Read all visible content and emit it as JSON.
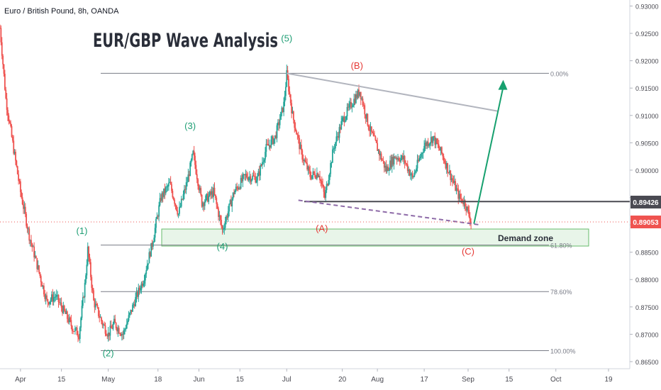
{
  "header": {
    "symbol": "Euro / British Pound, 8h, OANDA"
  },
  "annotations": {
    "title": "EUR/GBP Wave Analysis",
    "demand_zone": "Demand zone",
    "waves_green": [
      {
        "label": "(1)",
        "x": "2021-04-22",
        "y": 0.8883
      },
      {
        "label": "(2)",
        "x": "2021-05-01",
        "y": 0.866
      },
      {
        "label": "(3)",
        "x": "2021-05-29",
        "y": 0.9075
      },
      {
        "label": "(4)",
        "x": "2021-06-09",
        "y": 0.8855
      },
      {
        "label": "(5)",
        "x": "2021-07-01",
        "y": 0.9235
      }
    ],
    "waves_red": [
      {
        "label": "(A)",
        "x": "2021-07-13",
        "y": 0.8888
      },
      {
        "label": "(B)",
        "x": "2021-07-25",
        "y": 0.9185
      },
      {
        "label": "(C)",
        "x": "2021-09-01",
        "y": 0.8846
      }
    ]
  },
  "fib_levels": [
    {
      "label": "0.00%",
      "value": 0.9177
    },
    {
      "label": "61.80%",
      "value": 0.8863
    },
    {
      "label": "78.60%",
      "value": 0.8778
    },
    {
      "label": "100.00%",
      "value": 0.867
    }
  ],
  "price_badges": {
    "horizontal": "0.89426",
    "horizontal_value": 0.89426,
    "last": "0.89053",
    "last_value": 0.89053
  },
  "colors": {
    "up": "#26a69a",
    "down": "#ef5350",
    "wave_green": "#1e9e74",
    "wave_red": "#e53935",
    "fib": "#787b86",
    "trendline": "#b2b5be",
    "support": "#4a4a52",
    "dashed": "#8e6ba8",
    "zone_fill": "#e8f5e9",
    "zone_border": "#66bb6a",
    "arrow": "#16a06e"
  },
  "chart_data": {
    "type": "candlestick",
    "title": "",
    "xlabel": "",
    "ylabel": "",
    "xlim": [
      "2021-03-25",
      "2021-10-19"
    ],
    "ylim": [
      0.8637,
      0.9311
    ],
    "x_ticks": [
      {
        "label": "Apr",
        "date": "2021-04-01"
      },
      {
        "label": "15",
        "date": "2021-04-15"
      },
      {
        "label": "May",
        "date": "2021-05-01"
      },
      {
        "label": "18",
        "date": "2021-05-18"
      },
      {
        "label": "Jun",
        "date": "2021-06-01"
      },
      {
        "label": "15",
        "date": "2021-06-15"
      },
      {
        "label": "Jul",
        "date": "2021-07-01"
      },
      {
        "label": "20",
        "date": "2021-07-20"
      },
      {
        "label": "Aug",
        "date": "2021-08-01"
      },
      {
        "label": "17",
        "date": "2021-08-17"
      },
      {
        "label": "Sep",
        "date": "2021-09-01"
      },
      {
        "label": "15",
        "date": "2021-09-15"
      },
      {
        "label": "Oct",
        "date": "2021-10-01"
      },
      {
        "label": "19",
        "date": "2021-10-19"
      }
    ],
    "y_ticks": [
      "0.93000",
      "0.92500",
      "0.92000",
      "0.91500",
      "0.91000",
      "0.90500",
      "0.90000",
      "0.89500",
      "0.89000",
      "0.88500",
      "0.88000",
      "0.87500",
      "0.87000",
      "0.86500"
    ],
    "price_path": [
      [
        "2021-03-25",
        0.926
      ],
      [
        "2021-03-27",
        0.913
      ],
      [
        "2021-03-29",
        0.906
      ],
      [
        "2021-04-01",
        0.896
      ],
      [
        "2021-04-04",
        0.888
      ],
      [
        "2021-04-07",
        0.882
      ],
      [
        "2021-04-10",
        0.876
      ],
      [
        "2021-04-13",
        0.877
      ],
      [
        "2021-04-16",
        0.874
      ],
      [
        "2021-04-19",
        0.871
      ],
      [
        "2021-04-21",
        0.87
      ],
      [
        "2021-04-23",
        0.879
      ],
      [
        "2021-04-24",
        0.8855
      ],
      [
        "2021-04-26",
        0.876
      ],
      [
        "2021-04-29",
        0.872
      ],
      [
        "2021-05-01",
        0.87
      ],
      [
        "2021-05-03",
        0.872
      ],
      [
        "2021-05-06",
        0.87
      ],
      [
        "2021-05-10",
        0.876
      ],
      [
        "2021-05-13",
        0.88
      ],
      [
        "2021-05-16",
        0.8865
      ],
      [
        "2021-05-19",
        0.895
      ],
      [
        "2021-05-22",
        0.8975
      ],
      [
        "2021-05-25",
        0.892
      ],
      [
        "2021-05-28",
        0.898
      ],
      [
        "2021-05-30",
        0.903
      ],
      [
        "2021-06-02",
        0.894
      ],
      [
        "2021-06-06",
        0.896
      ],
      [
        "2021-06-09",
        0.889
      ],
      [
        "2021-06-13",
        0.896
      ],
      [
        "2021-06-17",
        0.899
      ],
      [
        "2021-06-21",
        0.8985
      ],
      [
        "2021-06-24",
        0.904
      ],
      [
        "2021-06-27",
        0.906
      ],
      [
        "2021-06-30",
        0.912
      ],
      [
        "2021-07-01",
        0.9175
      ],
      [
        "2021-07-03",
        0.91
      ],
      [
        "2021-07-06",
        0.903
      ],
      [
        "2021-07-09",
        0.899
      ],
      [
        "2021-07-12",
        0.8995
      ],
      [
        "2021-07-14",
        0.895
      ],
      [
        "2021-07-17",
        0.904
      ],
      [
        "2021-07-20",
        0.909
      ],
      [
        "2021-07-23",
        0.912
      ],
      [
        "2021-07-26",
        0.9145
      ],
      [
        "2021-07-29",
        0.908
      ],
      [
        "2021-08-01",
        0.904
      ],
      [
        "2021-08-04",
        0.9
      ],
      [
        "2021-08-07",
        0.9025
      ],
      [
        "2021-08-10",
        0.902
      ],
      [
        "2021-08-13",
        0.8985
      ],
      [
        "2021-08-17",
        0.9045
      ],
      [
        "2021-08-20",
        0.906
      ],
      [
        "2021-08-23",
        0.903
      ],
      [
        "2021-08-26",
        0.899
      ],
      [
        "2021-08-29",
        0.895
      ],
      [
        "2021-08-31",
        0.894
      ],
      [
        "2021-09-02",
        0.8905
      ]
    ]
  }
}
